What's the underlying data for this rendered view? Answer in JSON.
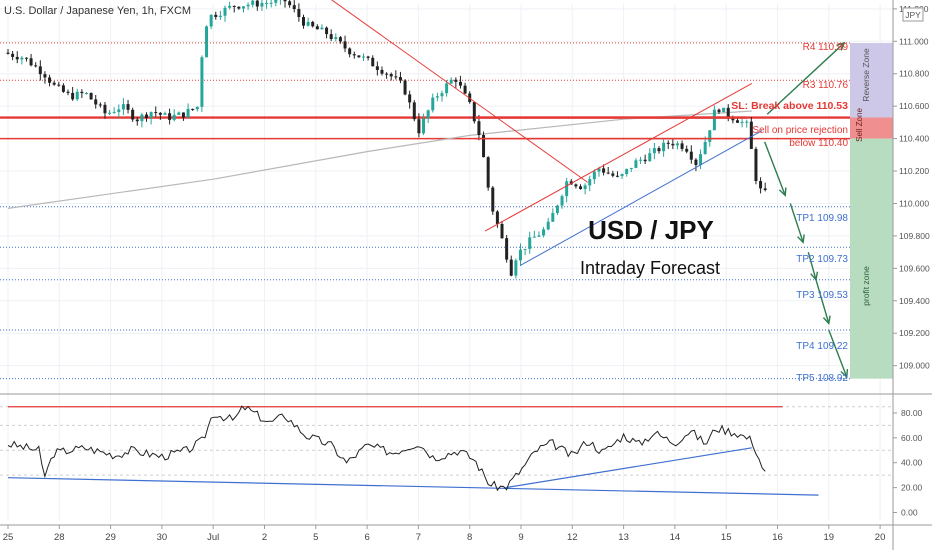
{
  "header": {
    "title": "U.S. Dollar / Japanese Yen, 1h, FXCM",
    "currency_badge": "JPY"
  },
  "annotations": {
    "headline": "USD / JPY",
    "subheadline": "Intraday Forecast",
    "r4": "R4 110.99",
    "r3": "R3 110.76",
    "sl": "SL: Break above 110.53",
    "sell_line1": "Sell on price rejection",
    "sell_line2": "below 110.40",
    "tp1": "TP1 109.98",
    "tp2": "TP2 109.73",
    "tp3": "TP3 109.53",
    "tp4": "TP4 109.22",
    "tp5": "TP5 108.92",
    "zone_reverse": "Reverse Zone",
    "zone_sell": "Sell Zone",
    "zone_profit": "profit zone"
  },
  "colors": {
    "candle_up": "#26a69a",
    "candle_down": "#222222",
    "resistance": "#e53935",
    "target": "#3f6fd0",
    "forecast": "#2e7d4f",
    "zone_reverse": "#cdc8e8",
    "zone_sell": "#f08f8f",
    "zone_profit": "#b7dcc0",
    "ma": "#b8b8b8"
  },
  "chart_data": [
    {
      "type": "candlestick",
      "title": "U.S. Dollar / Japanese Yen, 1h, FXCM",
      "x_labels": [
        "25",
        "28",
        "29",
        "30",
        "Jul",
        "2",
        "5",
        "6",
        "7",
        "8",
        "9",
        "12",
        "13",
        "14",
        "15",
        "16",
        "19",
        "20"
      ],
      "y_ticks": [
        "109.000",
        "109.200",
        "109.400",
        "109.600",
        "109.800",
        "110.000",
        "110.200",
        "110.400",
        "110.600",
        "110.800",
        "111.000",
        "111.200"
      ],
      "ylim": [
        108.85,
        111.23
      ],
      "price_path": [
        {
          "day": 0,
          "price": 110.93
        },
        {
          "day": 0.4,
          "price": 110.9
        },
        {
          "day": 0.8,
          "price": 110.8
        },
        {
          "day": 1.0,
          "price": 110.72
        },
        {
          "day": 1.3,
          "price": 110.66
        },
        {
          "day": 1.6,
          "price": 110.68
        },
        {
          "day": 2.0,
          "price": 110.55
        },
        {
          "day": 2.3,
          "price": 110.6
        },
        {
          "day": 2.6,
          "price": 110.52
        },
        {
          "day": 2.9,
          "price": 110.57
        },
        {
          "day": 3.2,
          "price": 110.53
        },
        {
          "day": 3.5,
          "price": 110.55
        },
        {
          "day": 3.8,
          "price": 110.6
        },
        {
          "day": 3.9,
          "price": 111.05
        },
        {
          "day": 4.0,
          "price": 111.15
        },
        {
          "day": 4.5,
          "price": 111.22
        },
        {
          "day": 5.5,
          "price": 111.25
        },
        {
          "day": 5.9,
          "price": 111.1
        },
        {
          "day": 6.3,
          "price": 111.05
        },
        {
          "day": 6.7,
          "price": 110.95
        },
        {
          "day": 7.1,
          "price": 110.88
        },
        {
          "day": 7.5,
          "price": 110.8
        },
        {
          "day": 7.8,
          "price": 110.72
        },
        {
          "day": 8.1,
          "price": 110.45
        },
        {
          "day": 8.4,
          "price": 110.65
        },
        {
          "day": 8.8,
          "price": 110.78
        },
        {
          "day": 9.1,
          "price": 110.6
        },
        {
          "day": 9.3,
          "price": 110.4
        },
        {
          "day": 9.5,
          "price": 110.0
        },
        {
          "day": 9.7,
          "price": 109.8
        },
        {
          "day": 9.9,
          "price": 109.58
        },
        {
          "day": 10.0,
          "price": 109.68
        },
        {
          "day": 10.3,
          "price": 109.78
        },
        {
          "day": 10.6,
          "price": 109.85
        },
        {
          "day": 11.0,
          "price": 110.15
        },
        {
          "day": 11.3,
          "price": 110.1
        },
        {
          "day": 11.6,
          "price": 110.22
        },
        {
          "day": 12.0,
          "price": 110.15
        },
        {
          "day": 12.3,
          "price": 110.25
        },
        {
          "day": 12.6,
          "price": 110.3
        },
        {
          "day": 13.0,
          "price": 110.38
        },
        {
          "day": 13.3,
          "price": 110.35
        },
        {
          "day": 13.5,
          "price": 110.25
        },
        {
          "day": 13.7,
          "price": 110.4
        },
        {
          "day": 13.9,
          "price": 110.6
        },
        {
          "day": 14.1,
          "price": 110.55
        },
        {
          "day": 14.3,
          "price": 110.52
        },
        {
          "day": 14.5,
          "price": 110.48
        },
        {
          "day": 14.7,
          "price": 110.1
        },
        {
          "day": 14.82,
          "price": 110.06
        }
      ],
      "moving_average": [
        {
          "day": 0,
          "price": 109.97
        },
        {
          "day": 4,
          "price": 110.15
        },
        {
          "day": 7,
          "price": 110.32
        },
        {
          "day": 9,
          "price": 110.42
        },
        {
          "day": 12,
          "price": 110.52
        },
        {
          "day": 14.5,
          "price": 110.57
        }
      ],
      "horizontal_levels": [
        {
          "name": "R4",
          "value": 110.99
        },
        {
          "name": "R3",
          "value": 110.76
        },
        {
          "name": "SL",
          "value": 110.53
        },
        {
          "name": "Sell",
          "value": 110.4
        },
        {
          "name": "TP1",
          "value": 109.98
        },
        {
          "name": "TP2",
          "value": 109.73
        },
        {
          "name": "TP3",
          "value": 109.53
        },
        {
          "name": "TP4",
          "value": 109.22
        },
        {
          "name": "TP5",
          "value": 108.92
        }
      ],
      "trendlines": [
        {
          "name": "descending-resistance",
          "from": {
            "day": 6.2,
            "price": 111.28
          },
          "to": {
            "day": 11.3,
            "price": 110.13
          }
        },
        {
          "name": "channel-upper",
          "from": {
            "day": 9.3,
            "price": 109.83
          },
          "to": {
            "day": 14.5,
            "price": 110.74
          }
        },
        {
          "name": "channel-lower",
          "from": {
            "day": 10.0,
            "price": 109.62
          },
          "to": {
            "day": 14.7,
            "price": 110.45
          }
        },
        {
          "name": "sl-line",
          "from": {
            "day": 9.1,
            "price": 110.53
          },
          "to": {
            "day": 14.4,
            "price": 110.53
          }
        },
        {
          "name": "sell-line",
          "from": {
            "day": 9.1,
            "price": 110.4
          },
          "to": {
            "day": 14.4,
            "price": 110.4
          }
        }
      ],
      "forecast_arrows": [
        {
          "from": {
            "day": 14.8,
            "price": 110.55
          },
          "to": {
            "day": 16.3,
            "price": 110.99
          }
        },
        {
          "from": {
            "day": 14.75,
            "price": 110.38
          },
          "to": {
            "day": 15.15,
            "price": 110.05
          }
        },
        {
          "from": {
            "day": 15.25,
            "price": 110.0
          },
          "to": {
            "day": 15.5,
            "price": 109.76
          }
        },
        {
          "from": {
            "day": 15.6,
            "price": 109.7
          },
          "to": {
            "day": 15.75,
            "price": 109.53
          }
        },
        {
          "from": {
            "day": 15.75,
            "price": 109.53
          },
          "to": {
            "day": 16.0,
            "price": 109.26
          }
        },
        {
          "from": {
            "day": 16.0,
            "price": 109.22
          },
          "to": {
            "day": 16.35,
            "price": 108.93
          }
        }
      ]
    },
    {
      "type": "line",
      "title": "",
      "y_ticks": [
        "0.00",
        "20.00",
        "40.00",
        "60.00",
        "80.00"
      ],
      "ylim": [
        -6,
        92
      ],
      "levels": [
        85,
        70,
        50,
        30
      ],
      "values": [
        {
          "day": 0,
          "value": 55
        },
        {
          "day": 0.6,
          "value": 50
        },
        {
          "day": 0.7,
          "value": 28
        },
        {
          "day": 0.9,
          "value": 48
        },
        {
          "day": 1.5,
          "value": 52
        },
        {
          "day": 2.1,
          "value": 46
        },
        {
          "day": 2.4,
          "value": 50
        },
        {
          "day": 3.0,
          "value": 45
        },
        {
          "day": 3.5,
          "value": 50
        },
        {
          "day": 3.8,
          "value": 58
        },
        {
          "day": 4.0,
          "value": 80
        },
        {
          "day": 4.4,
          "value": 74
        },
        {
          "day": 4.6,
          "value": 85
        },
        {
          "day": 5.1,
          "value": 72
        },
        {
          "day": 5.4,
          "value": 78
        },
        {
          "day": 5.8,
          "value": 62
        },
        {
          "day": 6.3,
          "value": 54
        },
        {
          "day": 6.6,
          "value": 40
        },
        {
          "day": 7.0,
          "value": 54
        },
        {
          "day": 7.5,
          "value": 48
        },
        {
          "day": 8.0,
          "value": 56
        },
        {
          "day": 8.3,
          "value": 44
        },
        {
          "day": 8.8,
          "value": 50
        },
        {
          "day": 9.1,
          "value": 42
        },
        {
          "day": 9.4,
          "value": 22
        },
        {
          "day": 9.7,
          "value": 20
        },
        {
          "day": 10.0,
          "value": 34
        },
        {
          "day": 10.3,
          "value": 50
        },
        {
          "day": 10.6,
          "value": 56
        },
        {
          "day": 11.0,
          "value": 45
        },
        {
          "day": 11.3,
          "value": 58
        },
        {
          "day": 11.6,
          "value": 48
        },
        {
          "day": 12.0,
          "value": 62
        },
        {
          "day": 12.3,
          "value": 55
        },
        {
          "day": 12.6,
          "value": 64
        },
        {
          "day": 13.0,
          "value": 56
        },
        {
          "day": 13.3,
          "value": 66
        },
        {
          "day": 13.6,
          "value": 55
        },
        {
          "day": 13.8,
          "value": 68
        },
        {
          "day": 14.2,
          "value": 64
        },
        {
          "day": 14.5,
          "value": 58
        },
        {
          "day": 14.7,
          "value": 37
        },
        {
          "day": 14.82,
          "value": 26
        }
      ],
      "trendlines": [
        {
          "name": "rsi-resistance",
          "from": {
            "day": 0,
            "value": 85
          },
          "to": {
            "day": 15.1,
            "value": 85
          }
        },
        {
          "name": "rsi-support-long",
          "from": {
            "day": 0,
            "value": 28
          },
          "to": {
            "day": 15.8,
            "value": 14
          }
        },
        {
          "name": "rsi-support-short",
          "from": {
            "day": 9.7,
            "value": 20
          },
          "to": {
            "day": 14.5,
            "value": 52
          }
        }
      ]
    }
  ]
}
